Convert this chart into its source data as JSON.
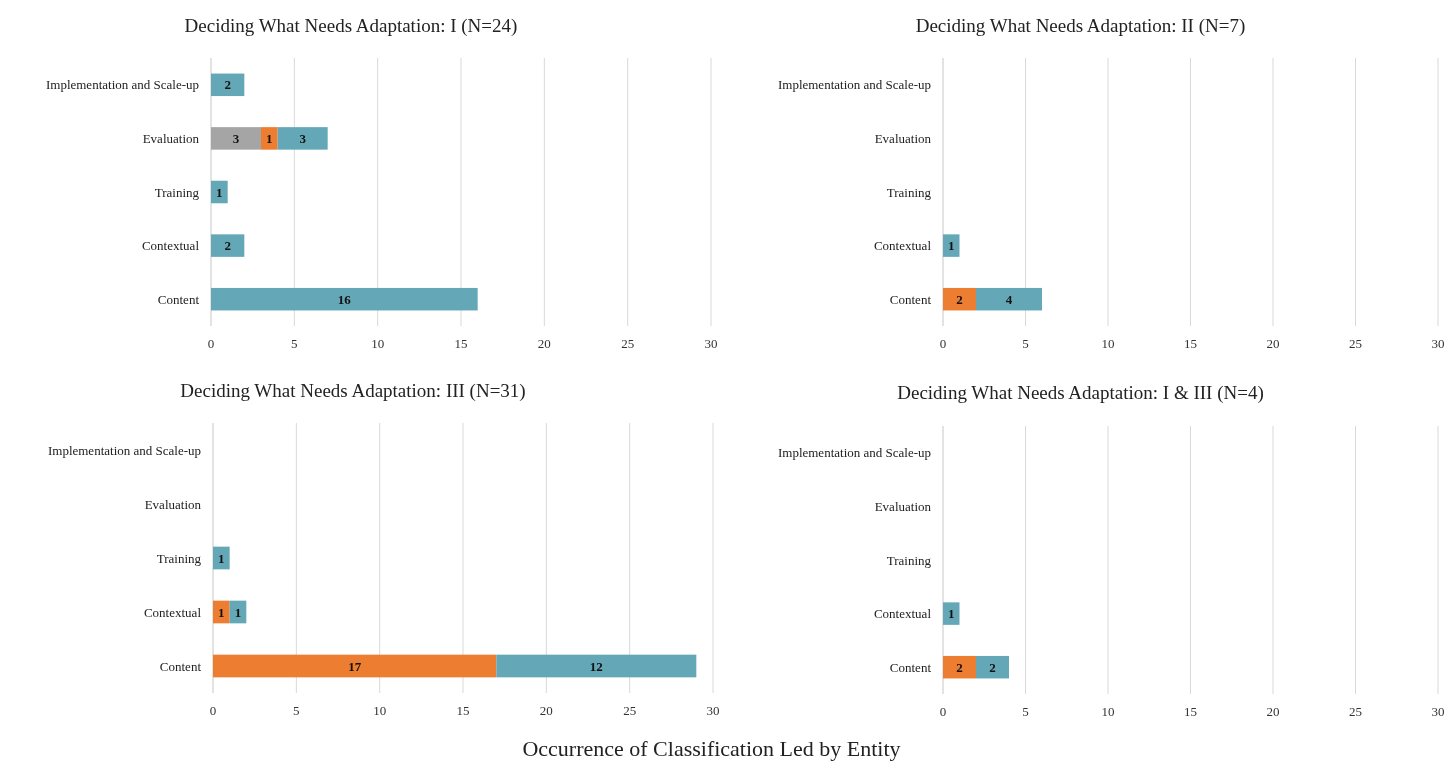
{
  "chart_data": [
    {
      "type": "bar",
      "orientation": "horizontal",
      "stacked": true,
      "title": "Deciding What Needs Adaptation: I (N=24)",
      "categories": [
        "Implementation and Scale-up",
        "Evaluation",
        "Training",
        "Contextual",
        "Content"
      ],
      "series": [
        {
          "color": "#a5a5a5",
          "values": [
            null,
            3,
            null,
            null,
            null
          ]
        },
        {
          "color": "#ed7d31",
          "values": [
            null,
            1,
            null,
            null,
            null
          ]
        },
        {
          "color": "#64a8b8",
          "values": [
            2,
            3,
            1,
            2,
            16
          ]
        }
      ],
      "xlim": [
        0,
        30
      ],
      "xticks": [
        0,
        5,
        10,
        15,
        20,
        25,
        30
      ],
      "grid": "x",
      "data_labels": true
    },
    {
      "type": "bar",
      "orientation": "horizontal",
      "stacked": true,
      "title": "Deciding What Needs Adaptation: II (N=7)",
      "categories": [
        "Implementation and Scale-up",
        "Evaluation",
        "Training",
        "Contextual",
        "Content"
      ],
      "series": [
        {
          "color": "#ed7d31",
          "values": [
            null,
            null,
            null,
            null,
            2
          ]
        },
        {
          "color": "#64a8b8",
          "values": [
            null,
            null,
            null,
            1,
            4
          ]
        }
      ],
      "xlim": [
        0,
        30
      ],
      "xticks": [
        0,
        5,
        10,
        15,
        20,
        25,
        30
      ],
      "grid": "x",
      "data_labels": true
    },
    {
      "type": "bar",
      "orientation": "horizontal",
      "stacked": true,
      "title": "Deciding What Needs Adaptation: III (N=31)",
      "xlabel": "Occurrence of Classification Led by Entity",
      "categories": [
        "Implementation and Scale-up",
        "Evaluation",
        "Training",
        "Contextual",
        "Content"
      ],
      "series": [
        {
          "color": "#ed7d31",
          "values": [
            null,
            null,
            null,
            1,
            17
          ]
        },
        {
          "color": "#64a8b8",
          "values": [
            null,
            null,
            1,
            1,
            12
          ]
        }
      ],
      "xlim": [
        0,
        30
      ],
      "xticks": [
        0,
        5,
        10,
        15,
        20,
        25,
        30
      ],
      "grid": "x",
      "data_labels": true
    },
    {
      "type": "bar",
      "orientation": "horizontal",
      "stacked": true,
      "title": "Deciding What Needs Adaptation: I & III (N=4)",
      "categories": [
        "Implementation and Scale-up",
        "Evaluation",
        "Training",
        "Contextual",
        "Content"
      ],
      "series": [
        {
          "color": "#ed7d31",
          "values": [
            null,
            null,
            null,
            null,
            2
          ]
        },
        {
          "color": "#64a8b8",
          "values": [
            null,
            null,
            null,
            1,
            2
          ]
        }
      ],
      "xlim": [
        0,
        30
      ],
      "xticks": [
        0,
        5,
        10,
        15,
        20,
        25,
        30
      ],
      "grid": "x",
      "data_labels": true
    }
  ]
}
